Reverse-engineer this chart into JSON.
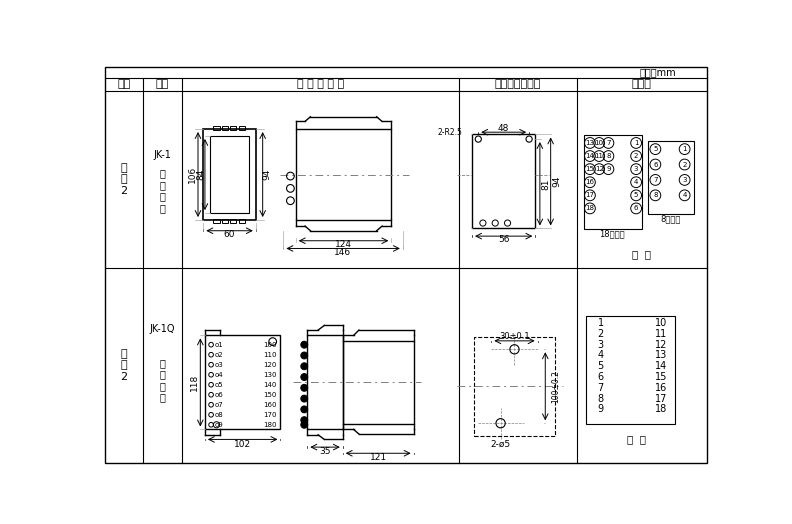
{
  "title_unit": "单位：mm",
  "col_headers": [
    "图号",
    "结构",
    "外 形 尺 寸 图",
    "安装开孔尺寸图",
    "端子图"
  ],
  "row1_label1": "附图2",
  "row1_label2": "JK-1",
  "row1_label3": "板后接线",
  "row2_label1": "附图2",
  "row2_label2": "JK-1Q",
  "row2_label3": "板前接线",
  "bg_color": "#ffffff",
  "line_color": "#000000",
  "dim_color": "#000000",
  "dash_color": "#888888"
}
